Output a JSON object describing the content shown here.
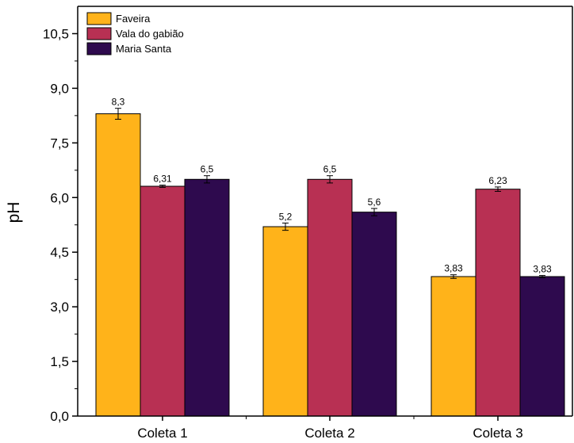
{
  "chart_data": {
    "type": "bar",
    "categories": [
      "Coleta 1",
      "Coleta 2",
      "Coleta 3"
    ],
    "series": [
      {
        "name": "Faveira",
        "values": [
          8.3,
          5.2,
          3.83
        ],
        "errors": [
          0.15,
          0.1,
          0.05
        ],
        "labels": [
          "8,3",
          "5,2",
          "3,83"
        ],
        "color": "#FFB31A"
      },
      {
        "name": "Vala do gabião",
        "values": [
          6.31,
          6.5,
          6.23
        ],
        "errors": [
          0.03,
          0.1,
          0.06
        ],
        "labels": [
          "6,31",
          "6,5",
          "6,23"
        ],
        "color": "#B83053"
      },
      {
        "name": "Maria Santa",
        "values": [
          6.5,
          5.6,
          3.83
        ],
        "errors": [
          0.1,
          0.1,
          0.03
        ],
        "labels": [
          "6,5",
          "5,6",
          "3,83"
        ],
        "color": "#2E0A4E"
      }
    ],
    "ylabel": "pH",
    "xlabel": "",
    "ylim": [
      0,
      11.25
    ],
    "yticks": [
      0.0,
      1.5,
      3.0,
      4.5,
      6.0,
      7.5,
      9.0,
      10.5
    ],
    "ytick_labels": [
      "0,0",
      "1,5",
      "3,0",
      "4,5",
      "6,0",
      "7,5",
      "9,0",
      "10,5"
    ],
    "legend_position": "top-left",
    "grid": false
  }
}
